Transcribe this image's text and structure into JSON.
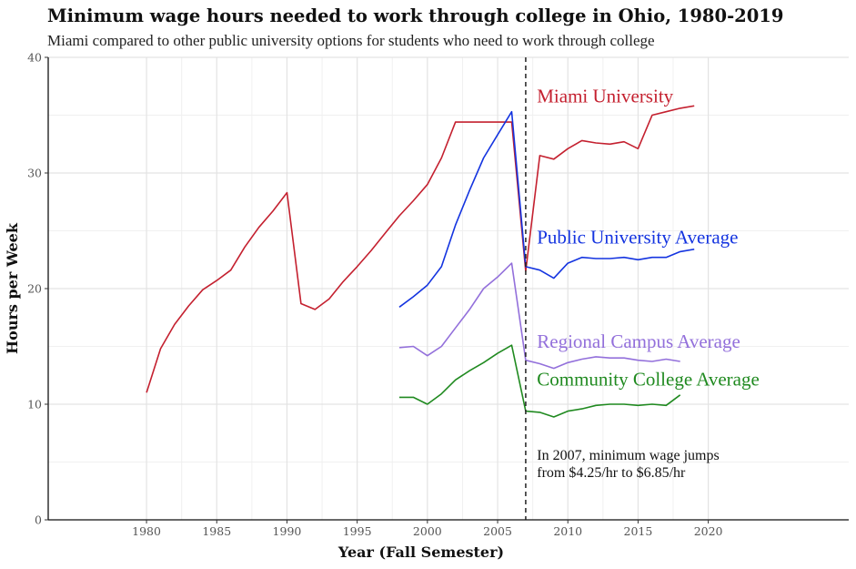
{
  "chart_data": {
    "type": "line",
    "title": "Minimum wage hours needed to work through college in Ohio, 1980-2019",
    "subtitle": "Miami compared to other public university options for students who need to work through college",
    "xlabel": "Year (Fall Semester)",
    "ylabel": "Hours per Week",
    "xlim": [
      1973,
      2030
    ],
    "ylim": [
      0,
      40
    ],
    "xticks": [
      1980,
      1985,
      1990,
      1995,
      2000,
      2005,
      2010,
      2015,
      2020
    ],
    "yticks": [
      0,
      10,
      20,
      30,
      40
    ],
    "grid": true,
    "series": [
      {
        "name": "Miami University",
        "color": "#c4202f",
        "x": [
          1980,
          1981,
          1982,
          1983,
          1984,
          1985,
          1986,
          1987,
          1988,
          1989,
          1990,
          1991,
          1992,
          1993,
          1994,
          1995,
          1996,
          1997,
          1998,
          1999,
          2000,
          2001,
          2002,
          2003,
          2004,
          2005,
          2006,
          2007,
          2008,
          2009,
          2010,
          2011,
          2012,
          2013,
          2014,
          2015,
          2016,
          2017,
          2018,
          2019
        ],
        "values": [
          11.0,
          14.8,
          16.9,
          18.5,
          19.9,
          20.7,
          21.6,
          23.6,
          25.3,
          26.7,
          28.3,
          18.7,
          18.2,
          19.1,
          20.6,
          21.9,
          23.3,
          24.8,
          26.3,
          27.6,
          29.0,
          31.3,
          34.4,
          34.4,
          34.4,
          34.4,
          34.4,
          21.5,
          31.5,
          31.2,
          32.1,
          32.8,
          32.6,
          32.5,
          32.7,
          32.1,
          35.0,
          35.3,
          35.6,
          35.8
        ]
      },
      {
        "name": "Public University Average",
        "color": "#1434e0",
        "x": [
          1998,
          1999,
          2000,
          2001,
          2002,
          2003,
          2004,
          2005,
          2006,
          2007,
          2008,
          2009,
          2010,
          2011,
          2012,
          2013,
          2014,
          2015,
          2016,
          2017,
          2018,
          2019
        ],
        "values": [
          18.4,
          19.3,
          20.3,
          21.9,
          25.5,
          28.5,
          31.3,
          33.3,
          35.3,
          21.9,
          21.6,
          20.9,
          22.2,
          22.7,
          22.6,
          22.6,
          22.7,
          22.5,
          22.7,
          22.7,
          23.2,
          23.4
        ]
      },
      {
        "name": "Regional Campus Average",
        "color": "#9370db",
        "x": [
          1998,
          1999,
          2000,
          2001,
          2002,
          2003,
          2004,
          2005,
          2006,
          2007,
          2008,
          2009,
          2010,
          2011,
          2012,
          2013,
          2014,
          2015,
          2016,
          2017,
          2018
        ],
        "values": [
          14.9,
          15.0,
          14.2,
          15.0,
          16.6,
          18.2,
          20.0,
          21.0,
          22.2,
          13.8,
          13.5,
          13.1,
          13.6,
          13.9,
          14.1,
          14.0,
          14.0,
          13.8,
          13.7,
          13.9,
          13.7
        ]
      },
      {
        "name": "Community College Average",
        "color": "#208a20",
        "x": [
          1998,
          1999,
          2000,
          2001,
          2002,
          2003,
          2004,
          2005,
          2006,
          2007,
          2008,
          2009,
          2010,
          2011,
          2012,
          2013,
          2014,
          2015,
          2016,
          2017,
          2018
        ],
        "values": [
          10.6,
          10.6,
          10.0,
          10.9,
          12.1,
          12.9,
          13.6,
          14.4,
          15.1,
          9.4,
          9.3,
          8.9,
          9.4,
          9.6,
          9.9,
          10.0,
          10.0,
          9.9,
          10.0,
          9.9,
          10.8
        ]
      }
    ],
    "vline": {
      "x": 2007,
      "style": "dashed",
      "color": "#222222"
    },
    "annotation": {
      "x": 2007.8,
      "y": 5.2,
      "lines": [
        "In 2007, minimum wage jumps",
        "from $4.25/hr to $6.85/hr"
      ]
    },
    "series_label_positions": [
      {
        "series": "Miami University",
        "x": 2007.8,
        "y": 36.1
      },
      {
        "series": "Public University Average",
        "x": 2007.8,
        "y": 23.9
      },
      {
        "series": "Regional Campus Average",
        "x": 2007.8,
        "y": 14.9
      },
      {
        "series": "Community College Average",
        "x": 2007.8,
        "y": 11.6
      }
    ]
  }
}
